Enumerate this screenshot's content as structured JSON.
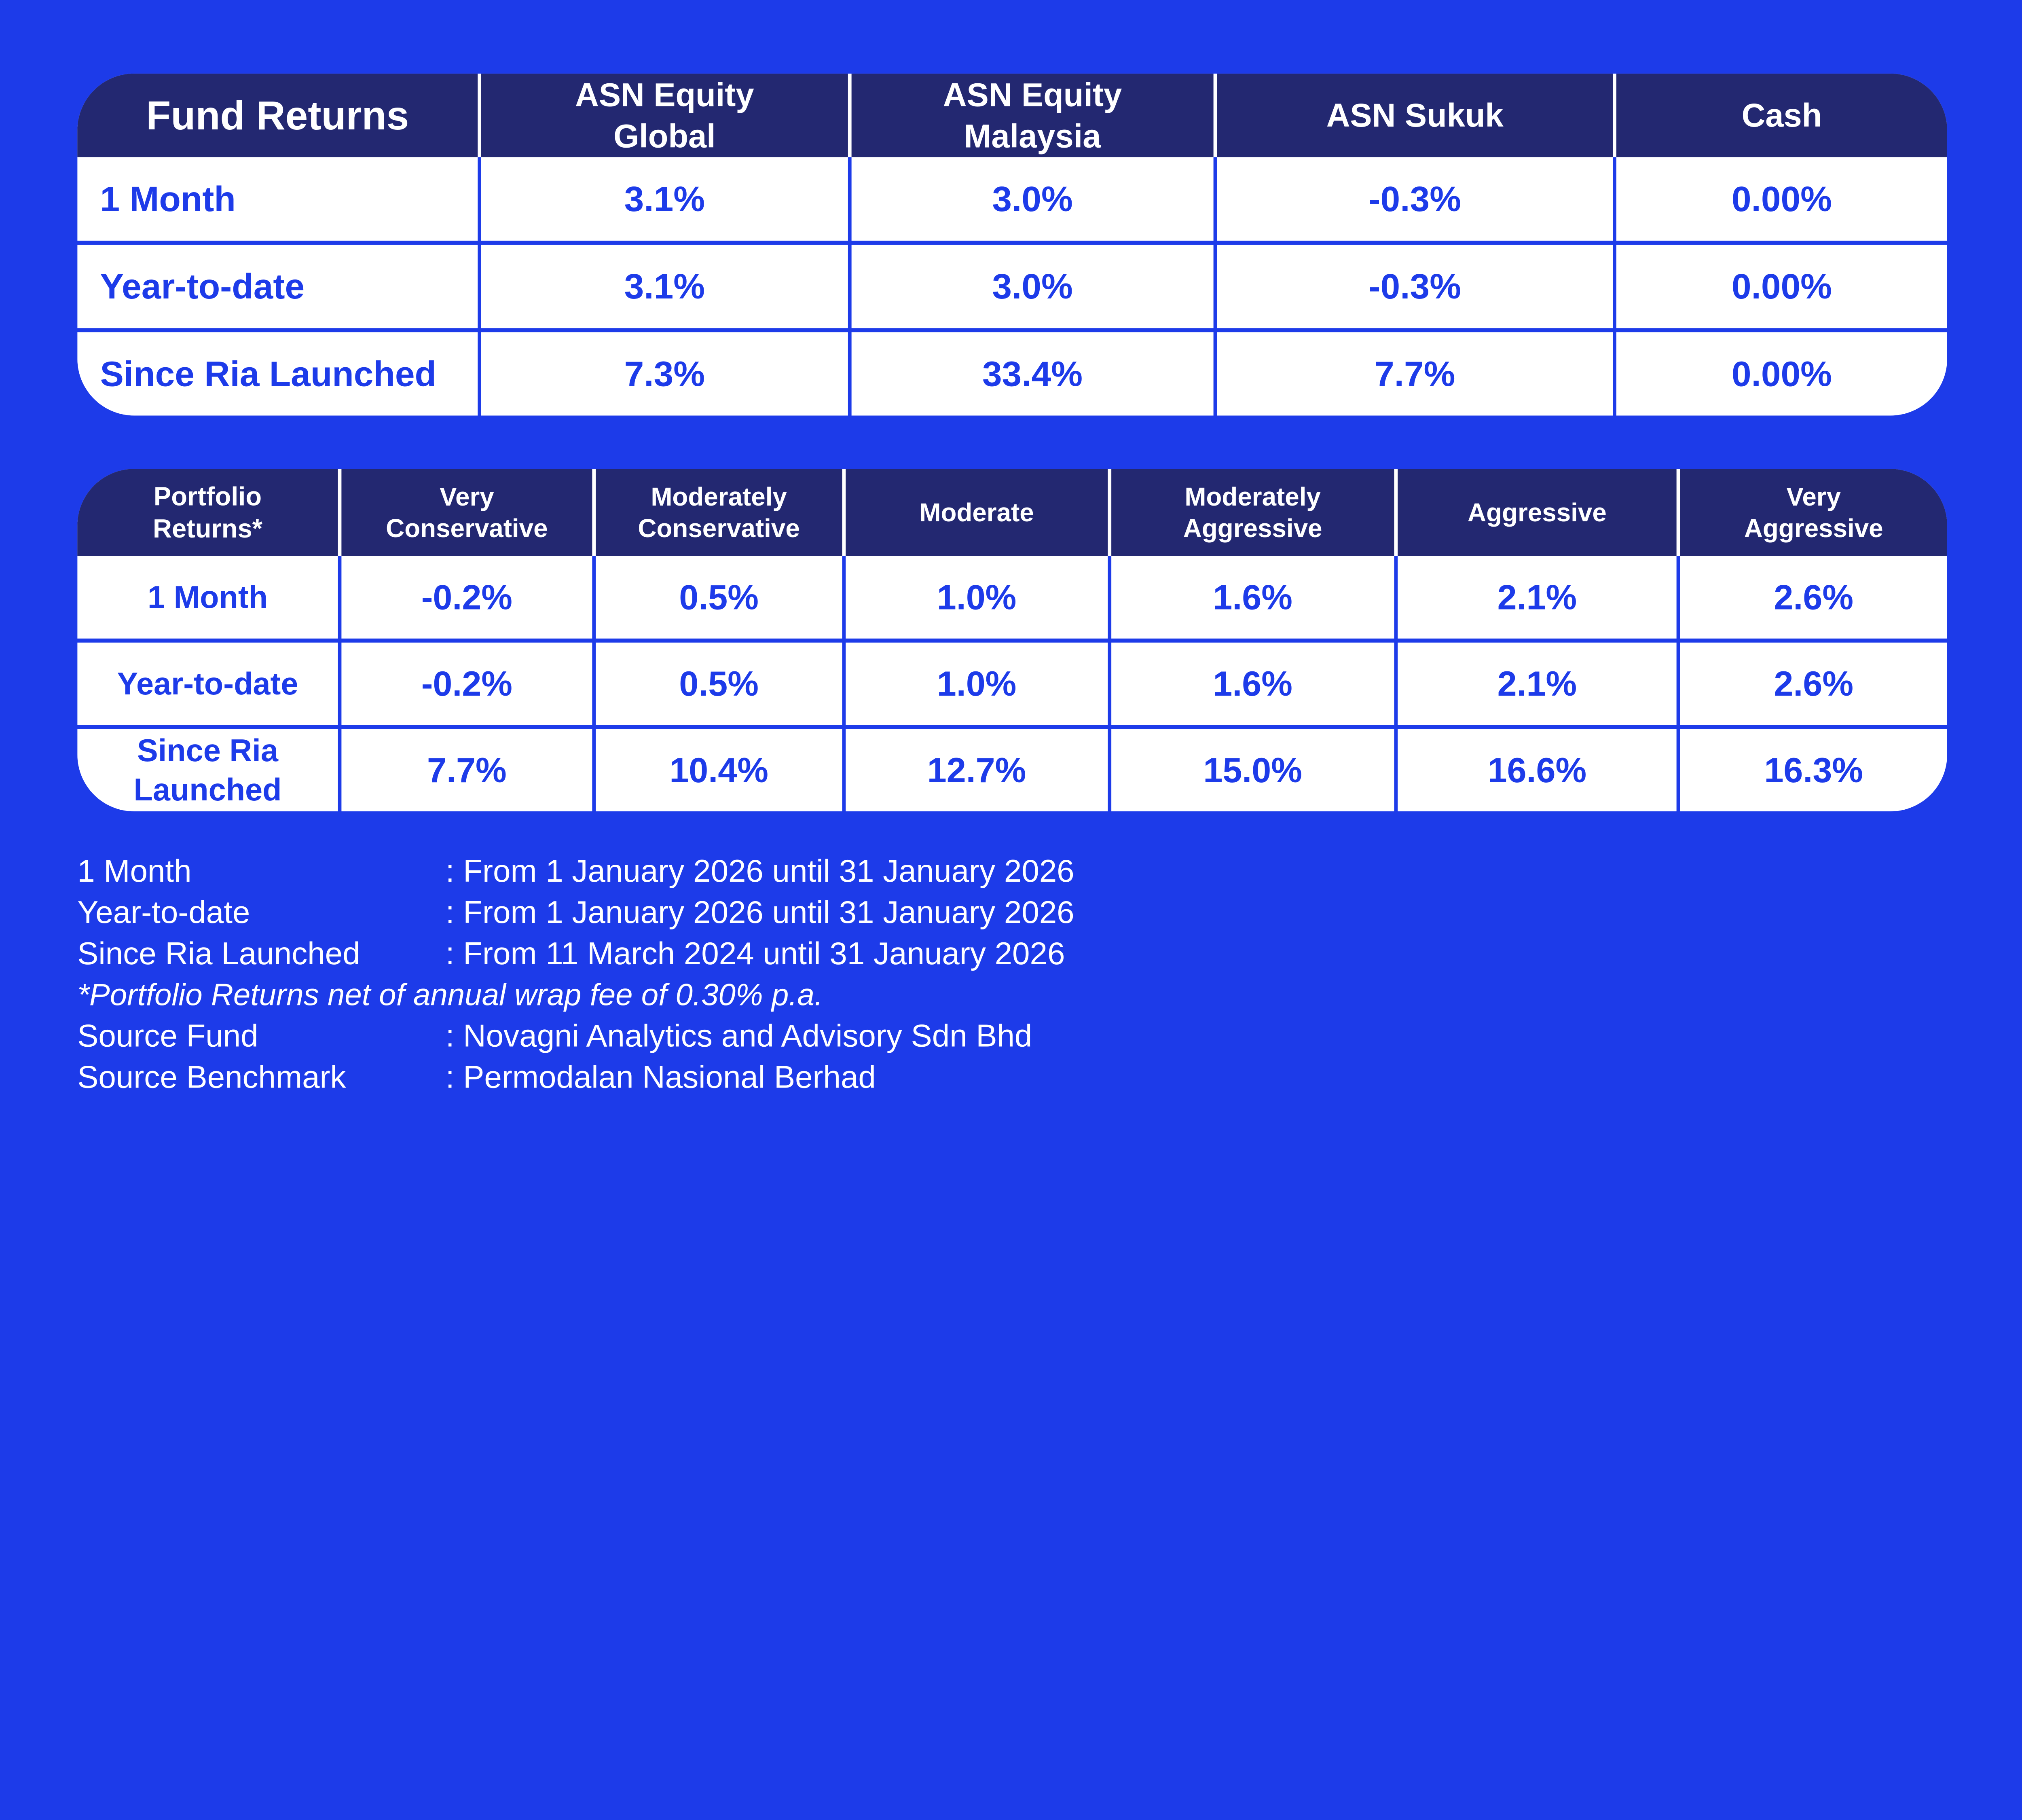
{
  "colors": {
    "background_blue": "#1d3be9",
    "header_navy": "#232871",
    "cell_white": "#ffffff",
    "value_text_blue": "#1d3be9",
    "footnote_text": "#ffffff"
  },
  "fund_returns_table": {
    "title": "Fund Returns",
    "columns": [
      "ASN Equity\nGlobal",
      "ASN Equity\nMalaysia",
      "ASN Sukuk",
      "Cash"
    ],
    "rows": [
      {
        "label": "1 Month",
        "values": [
          "3.1%",
          "3.0%",
          "-0.3%",
          "0.00%"
        ]
      },
      {
        "label": "Year-to-date",
        "values": [
          "3.1%",
          "3.0%",
          "-0.3%",
          "0.00%"
        ]
      },
      {
        "label": "Since Ria Launched",
        "values": [
          "7.3%",
          "33.4%",
          "7.7%",
          "0.00%"
        ]
      }
    ]
  },
  "portfolio_returns_table": {
    "title": "Portfolio\nReturns*",
    "columns": [
      "Very\nConservative",
      "Moderately\nConservative",
      "Moderate",
      "Moderately\nAggressive",
      "Aggressive",
      "Very\nAggressive"
    ],
    "rows": [
      {
        "label": "1 Month",
        "values": [
          "-0.2%",
          "0.5%",
          "1.0%",
          "1.6%",
          "2.1%",
          "2.6%"
        ]
      },
      {
        "label": "Year-to-date",
        "values": [
          "-0.2%",
          "0.5%",
          "1.0%",
          "1.6%",
          "2.1%",
          "2.6%"
        ]
      },
      {
        "label": "Since Ria\nLaunched",
        "values": [
          "7.7%",
          "10.4%",
          "12.7%",
          "15.0%",
          "16.6%",
          "16.3%"
        ]
      }
    ]
  },
  "footnotes": [
    {
      "label": "1 Month",
      "value": ": From 1 January 2026 until 31 January 2026"
    },
    {
      "label": "Year-to-date",
      "value": ": From 1 January 2026 until 31 January 2026"
    },
    {
      "label": "Since Ria Launched",
      "value": ": From 11 March 2024 until 31 January 2026"
    },
    {
      "note": "*Portfolio Returns net of annual wrap fee of 0.30% p.a."
    },
    {
      "label": "Source Fund",
      "value": ": Novagni Analytics and Advisory Sdn Bhd"
    },
    {
      "label": "Source Benchmark",
      "value": ": Permodalan Nasional Berhad"
    }
  ],
  "chart_data": [
    {
      "type": "table",
      "title": "Fund Returns",
      "categories": [
        "ASN Equity Global",
        "ASN Equity Malaysia",
        "ASN Sukuk",
        "Cash"
      ],
      "series": [
        {
          "name": "1 Month",
          "values": [
            3.1,
            3.0,
            -0.3,
            0.0
          ]
        },
        {
          "name": "Year-to-date",
          "values": [
            3.1,
            3.0,
            -0.3,
            0.0
          ]
        },
        {
          "name": "Since Ria Launched",
          "values": [
            7.3,
            33.4,
            7.7,
            0.0
          ]
        }
      ],
      "unit": "%"
    },
    {
      "type": "table",
      "title": "Portfolio Returns*",
      "categories": [
        "Very Conservative",
        "Moderately Conservative",
        "Moderate",
        "Moderately Aggressive",
        "Aggressive",
        "Very Aggressive"
      ],
      "series": [
        {
          "name": "1 Month",
          "values": [
            -0.2,
            0.5,
            1.0,
            1.6,
            2.1,
            2.6
          ]
        },
        {
          "name": "Year-to-date",
          "values": [
            -0.2,
            0.5,
            1.0,
            1.6,
            2.1,
            2.6
          ]
        },
        {
          "name": "Since Ria Launched",
          "values": [
            7.7,
            10.4,
            12.7,
            15.0,
            16.6,
            16.3
          ]
        }
      ],
      "unit": "%"
    }
  ]
}
